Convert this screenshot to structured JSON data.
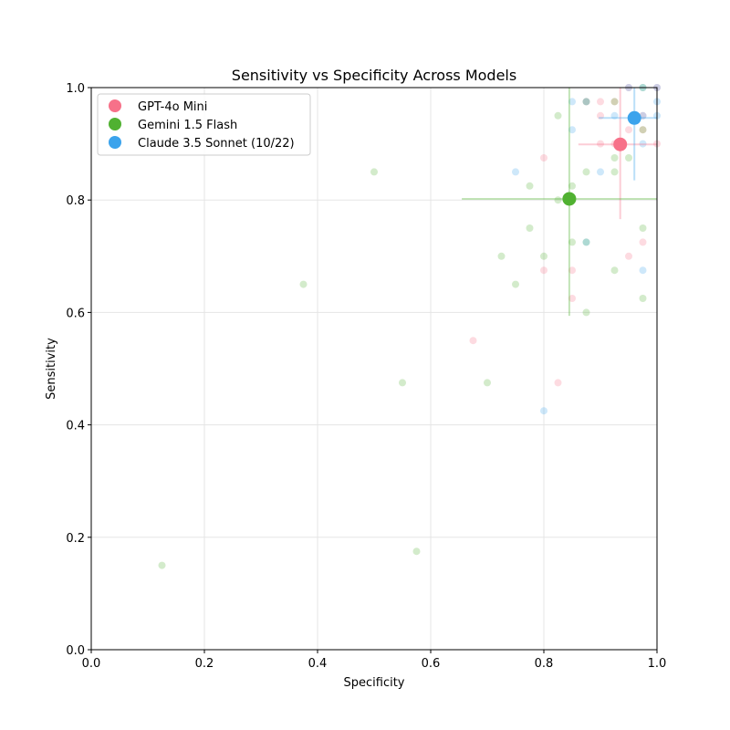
{
  "chart_data": {
    "type": "scatter",
    "title": "Sensitivity vs Specificity Across Models",
    "xlabel": "Specificity",
    "ylabel": "Sensitivity",
    "xlim": [
      0,
      1
    ],
    "ylim": [
      0,
      1
    ],
    "xticks": [
      "0.0",
      "0.2",
      "0.4",
      "0.6",
      "0.8",
      "1.0"
    ],
    "yticks": [
      "0.0",
      "0.2",
      "0.4",
      "0.6",
      "0.8",
      "1.0"
    ],
    "grid": true,
    "legend_position": "top-left",
    "series": [
      {
        "name": "GPT-4o Mini",
        "color": "#f77189",
        "mean": {
          "x": 0.935,
          "y": 0.899,
          "x_err": [
            0.861,
            1.0
          ],
          "y_err": [
            0.766,
            1.0
          ]
        },
        "points": [
          [
            0.8,
            0.875
          ],
          [
            0.9,
            0.975
          ],
          [
            0.925,
            0.975
          ],
          [
            0.9,
            0.95
          ],
          [
            0.9,
            0.9
          ],
          [
            0.95,
            0.925
          ],
          [
            0.95,
            1.0
          ],
          [
            0.975,
            0.95
          ],
          [
            0.975,
            0.925
          ],
          [
            0.8,
            0.675
          ],
          [
            0.85,
            0.675
          ],
          [
            0.85,
            0.625
          ],
          [
            0.675,
            0.55
          ],
          [
            0.825,
            0.475
          ],
          [
            0.95,
            0.7
          ],
          [
            0.975,
            0.725
          ],
          [
            1.0,
            0.9
          ],
          [
            0.875,
            0.975
          ],
          [
            0.925,
            0.9
          ],
          [
            1.0,
            1.0
          ]
        ]
      },
      {
        "name": "Gemini 1.5 Flash",
        "color": "#50b131",
        "mean": {
          "x": 0.845,
          "y": 0.802,
          "x_err": [
            0.655,
            1.0
          ],
          "y_err": [
            0.594,
            1.0
          ]
        },
        "points": [
          [
            0.125,
            0.15
          ],
          [
            0.375,
            0.65
          ],
          [
            0.5,
            0.85
          ],
          [
            0.55,
            0.475
          ],
          [
            0.575,
            0.175
          ],
          [
            0.7,
            0.475
          ],
          [
            0.725,
            0.7
          ],
          [
            0.75,
            0.65
          ],
          [
            0.775,
            0.825
          ],
          [
            0.775,
            0.75
          ],
          [
            0.8,
            0.7
          ],
          [
            0.825,
            0.8
          ],
          [
            0.85,
            0.825
          ],
          [
            0.85,
            0.725
          ],
          [
            0.875,
            0.85
          ],
          [
            0.875,
            0.725
          ],
          [
            0.875,
            0.6
          ],
          [
            0.925,
            0.875
          ],
          [
            0.925,
            0.85
          ],
          [
            0.925,
            0.675
          ],
          [
            0.95,
            0.875
          ],
          [
            0.975,
            0.75
          ],
          [
            0.975,
            0.625
          ],
          [
            0.825,
            0.95
          ],
          [
            0.875,
            0.975
          ],
          [
            0.925,
            0.975
          ],
          [
            0.975,
            1.0
          ],
          [
            0.975,
            0.925
          ]
        ]
      },
      {
        "name": "Claude 3.5 Sonnet (10/22)",
        "color": "#3ba3ec",
        "mean": {
          "x": 0.96,
          "y": 0.946,
          "x_err": [
            0.897,
            1.0
          ],
          "y_err": [
            0.835,
            1.0
          ]
        },
        "points": [
          [
            0.75,
            0.85
          ],
          [
            0.8,
            0.425
          ],
          [
            0.85,
            0.975
          ],
          [
            0.85,
            0.925
          ],
          [
            0.9,
            0.85
          ],
          [
            0.925,
            0.95
          ],
          [
            0.975,
            0.9
          ],
          [
            0.975,
            0.675
          ],
          [
            0.975,
            1.0
          ],
          [
            1.0,
            0.975
          ],
          [
            1.0,
            0.95
          ],
          [
            0.975,
            0.95
          ],
          [
            0.875,
            0.725
          ],
          [
            0.875,
            0.975
          ],
          [
            0.95,
            1.0
          ],
          [
            1.0,
            1.0
          ]
        ]
      }
    ]
  }
}
